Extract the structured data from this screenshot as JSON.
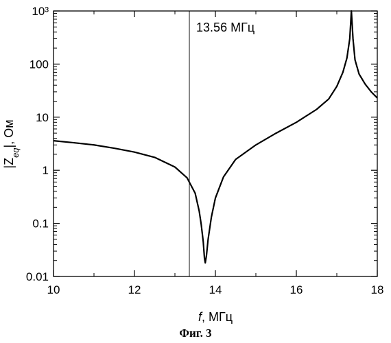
{
  "figure_caption": "Фиг. 3",
  "chart_data": {
    "type": "line",
    "title": "",
    "xlabel_italic": "f",
    "xlabel_rest": ", МГц",
    "ylabel_pre": "|Z",
    "ylabel_sub": "eq",
    "ylabel_post": "|, Ом",
    "xlim": [
      10,
      18
    ],
    "ylim": [
      0.01,
      1000
    ],
    "yscale": "log",
    "x_ticks": [
      "10",
      "12",
      "14",
      "16",
      "18"
    ],
    "y_ticks": [
      "0.01",
      "0.1",
      "1",
      "10",
      "100",
      "10³"
    ],
    "grid": false,
    "legend": "none",
    "line_color": "#000000",
    "marker_line": {
      "x": 13.56,
      "label": "13.56 МГц"
    },
    "series": [
      {
        "points": [
          [
            10.0,
            3.6
          ],
          [
            10.5,
            3.3
          ],
          [
            11.0,
            3.0
          ],
          [
            11.5,
            2.6
          ],
          [
            12.0,
            2.2
          ],
          [
            12.5,
            1.75
          ],
          [
            13.0,
            1.15
          ],
          [
            13.3,
            0.72
          ],
          [
            13.5,
            0.37
          ],
          [
            13.6,
            0.17
          ],
          [
            13.65,
            0.095
          ],
          [
            13.7,
            0.045
          ],
          [
            13.73,
            0.022
          ],
          [
            13.75,
            0.018
          ],
          [
            13.78,
            0.025
          ],
          [
            13.82,
            0.05
          ],
          [
            13.9,
            0.13
          ],
          [
            14.0,
            0.3
          ],
          [
            14.2,
            0.75
          ],
          [
            14.5,
            1.6
          ],
          [
            15.0,
            3.0
          ],
          [
            15.5,
            5.0
          ],
          [
            16.0,
            8.0
          ],
          [
            16.5,
            14
          ],
          [
            16.8,
            22
          ],
          [
            17.0,
            38
          ],
          [
            17.15,
            70
          ],
          [
            17.25,
            130
          ],
          [
            17.32,
            300
          ],
          [
            17.36,
            1000
          ],
          [
            17.4,
            300
          ],
          [
            17.45,
            120
          ],
          [
            17.55,
            65
          ],
          [
            17.7,
            42
          ],
          [
            17.85,
            30
          ],
          [
            18.0,
            23
          ]
        ]
      }
    ]
  }
}
